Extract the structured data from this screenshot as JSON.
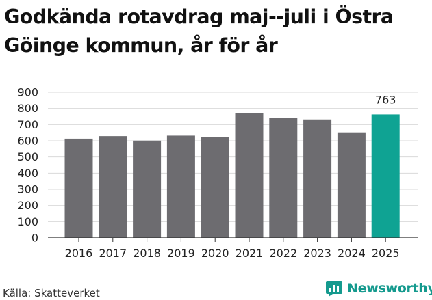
{
  "header": {
    "title": "Godkända rotavdrag maj--juli i Östra Göinge kommun, år för år"
  },
  "footer": {
    "source": "Källa: Skatteverket",
    "brand": "Newsworthy",
    "brand_icon": "newsworthy-logo-icon"
  },
  "colors": {
    "bar": "#6d6c70",
    "highlight": "#0fa393",
    "grid": "#d9d9d9",
    "brand": "#159a8e"
  },
  "chart_data": {
    "type": "bar",
    "title": "Godkända rotavdrag maj--juli i Östra Göinge kommun, år för år",
    "xlabel": "",
    "ylabel": "",
    "categories": [
      "2016",
      "2017",
      "2018",
      "2019",
      "2020",
      "2021",
      "2022",
      "2023",
      "2024",
      "2025"
    ],
    "values": [
      613,
      629,
      601,
      632,
      624,
      771,
      741,
      732,
      652,
      763
    ],
    "highlight_index": 9,
    "data_labels": [
      {
        "index": 9,
        "text": "763"
      }
    ],
    "yticks": [
      "0",
      "100",
      "200",
      "300",
      "400",
      "500",
      "600",
      "700",
      "800",
      "900"
    ],
    "ylim": [
      0,
      900
    ],
    "grid": true,
    "legend": "none"
  }
}
